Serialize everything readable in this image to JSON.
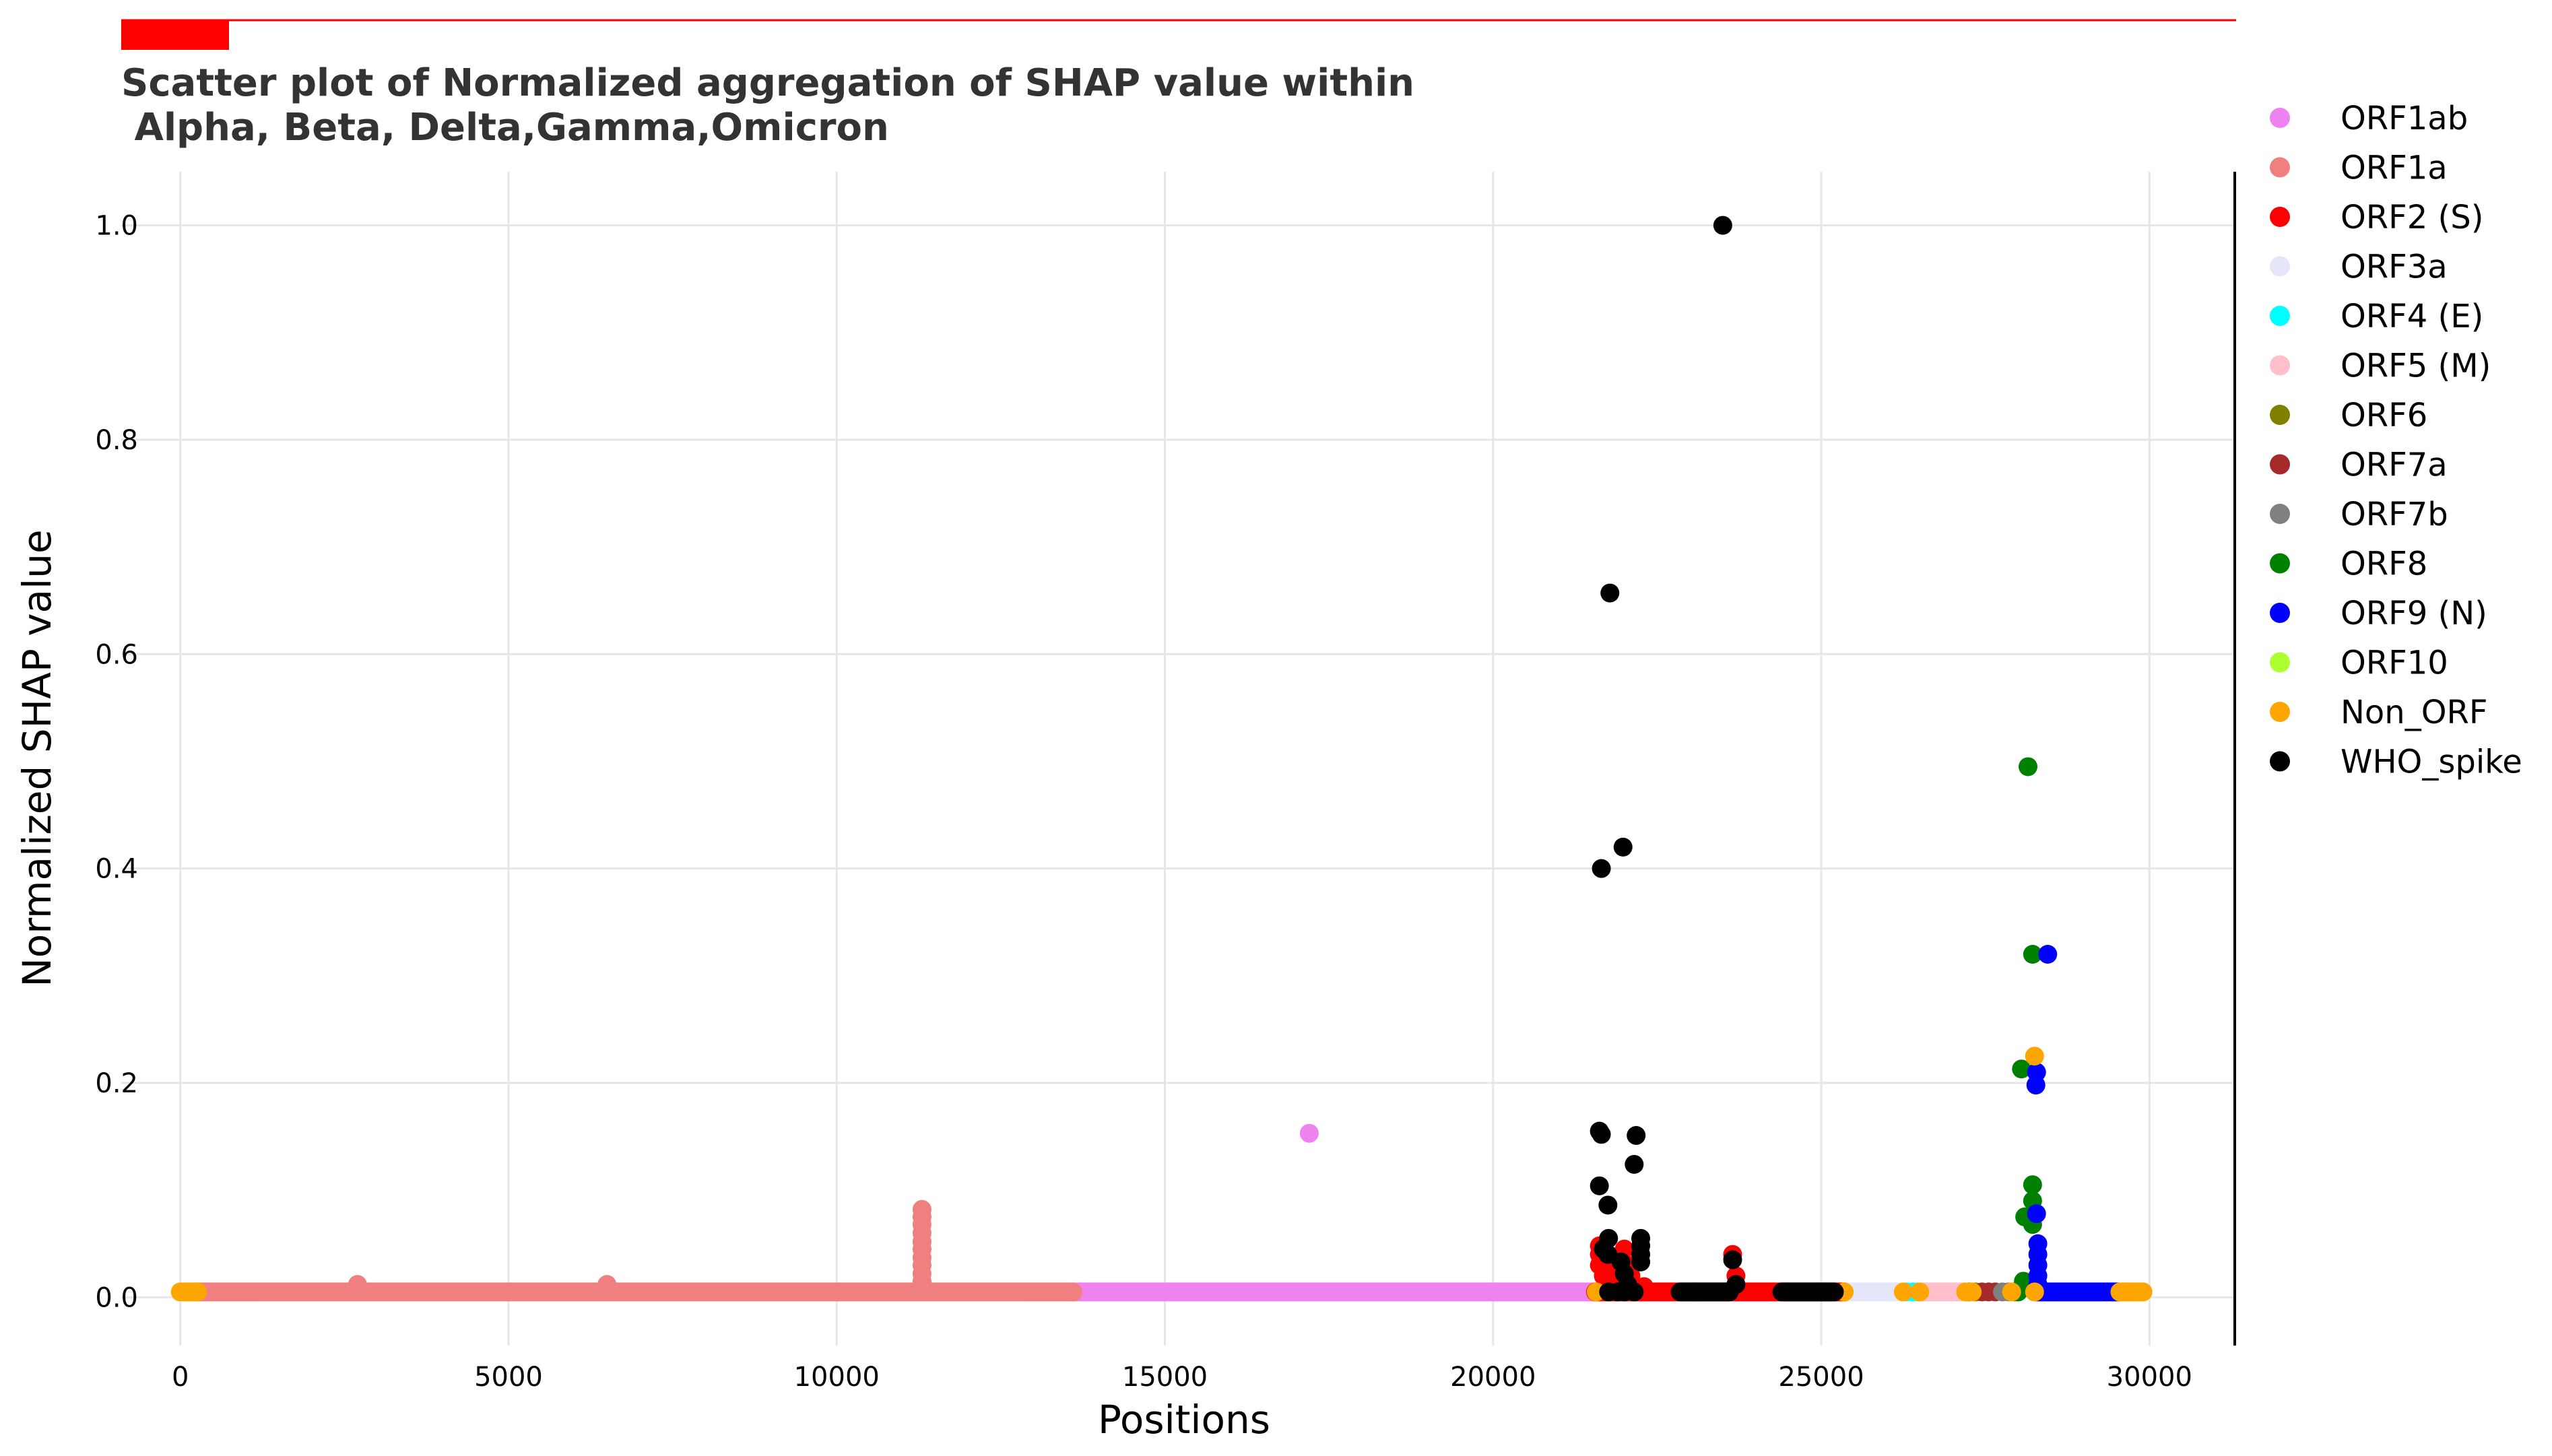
{
  "chart_data": {
    "type": "scatter",
    "title_line1": "Scatter plot of Normalized aggregation of SHAP value within",
    "title_line2": " Alpha, Beta, Delta,Gamma,Omicron",
    "xlabel": "Positions",
    "ylabel": "Normalized SHAP value",
    "xlim": [
      -900,
      31300
    ],
    "ylim": [
      -0.045,
      1.05
    ],
    "x_ticks": [
      0,
      5000,
      10000,
      15000,
      20000,
      25000,
      30000
    ],
    "x_tick_labels": [
      "0",
      "5000",
      "10000",
      "15000",
      "20000",
      "25000",
      "30000"
    ],
    "y_ticks": [
      0.0,
      0.2,
      0.4,
      0.6,
      0.8,
      1.0
    ],
    "y_tick_labels": [
      "0.0",
      "0.2",
      "0.4",
      "0.6",
      "0.8",
      "1.0"
    ],
    "grid": true,
    "legend_position": "right",
    "series": [
      {
        "name": "ORF1ab",
        "color": "#ee82ee",
        "segments": [
          [
            13600,
            21550,
            0.005
          ]
        ],
        "points": [
          [
            17200,
            0.153
          ]
        ]
      },
      {
        "name": "ORF1a",
        "color": "#f08080",
        "segments": [
          [
            250,
            13600,
            0.005
          ]
        ],
        "points": [
          [
            2700,
            0.012
          ],
          [
            6500,
            0.012
          ],
          [
            11300,
            0.082
          ],
          [
            11300,
            0.075
          ],
          [
            11300,
            0.068
          ],
          [
            11300,
            0.06
          ],
          [
            11300,
            0.052
          ],
          [
            11300,
            0.045
          ],
          [
            11300,
            0.037
          ],
          [
            11300,
            0.03
          ],
          [
            11300,
            0.022
          ],
          [
            11300,
            0.015
          ]
        ]
      },
      {
        "name": "ORF2 (S)",
        "color": "#ff0000",
        "segments": [
          [
            21560,
            25380,
            0.005
          ]
        ],
        "points": [
          [
            21620,
            0.048
          ],
          [
            21620,
            0.04
          ],
          [
            21620,
            0.03
          ],
          [
            21680,
            0.02
          ],
          [
            21750,
            0.035
          ],
          [
            21800,
            0.025
          ],
          [
            21850,
            0.015
          ],
          [
            21950,
            0.04
          ],
          [
            22000,
            0.045
          ],
          [
            22050,
            0.03
          ],
          [
            22100,
            0.02
          ],
          [
            22150,
            0.01
          ],
          [
            22250,
            0.005
          ],
          [
            22300,
            0.01
          ],
          [
            23650,
            0.04
          ],
          [
            23700,
            0.02
          ]
        ]
      },
      {
        "name": "ORF3a",
        "color": "#e6e6fa",
        "segments": [
          [
            25390,
            26220,
            0.005
          ]
        ],
        "points": []
      },
      {
        "name": "ORF4 (E)",
        "color": "#00ffff",
        "segments": [],
        "points": [
          [
            26300,
            0.005
          ],
          [
            26400,
            0.005
          ],
          [
            26470,
            0.005
          ]
        ]
      },
      {
        "name": "ORF5 (M)",
        "color": "#ffc0cb",
        "segments": [
          [
            26520,
            27190,
            0.005
          ]
        ],
        "points": []
      },
      {
        "name": "ORF6",
        "color": "#808000",
        "segments": [],
        "points": [
          [
            27250,
            0.005
          ],
          [
            27350,
            0.005
          ]
        ]
      },
      {
        "name": "ORF7a",
        "color": "#a52a2a",
        "segments": [],
        "points": [
          [
            27450,
            0.005
          ],
          [
            27550,
            0.005
          ],
          [
            27650,
            0.005
          ]
        ]
      },
      {
        "name": "ORF7b",
        "color": "#808080",
        "segments": [],
        "points": [
          [
            27760,
            0.005
          ],
          [
            27850,
            0.005
          ]
        ]
      },
      {
        "name": "ORF8",
        "color": "#008000",
        "segments": [],
        "points": [
          [
            28150,
            0.495
          ],
          [
            28220,
            0.32
          ],
          [
            28050,
            0.213
          ],
          [
            28220,
            0.105
          ],
          [
            28220,
            0.09
          ],
          [
            28100,
            0.075
          ],
          [
            28220,
            0.068
          ],
          [
            28080,
            0.015
          ],
          [
            27950,
            0.005
          ],
          [
            28000,
            0.005
          ]
        ]
      },
      {
        "name": "ORF9 (N)",
        "color": "#0000ff",
        "segments": [
          [
            28280,
            29530,
            0.005
          ]
        ],
        "points": [
          [
            28450,
            0.32
          ],
          [
            28280,
            0.21
          ],
          [
            28270,
            0.198
          ],
          [
            28280,
            0.078
          ],
          [
            28300,
            0.05
          ],
          [
            28300,
            0.04
          ],
          [
            28300,
            0.03
          ],
          [
            28300,
            0.02
          ],
          [
            28300,
            0.012
          ]
        ]
      },
      {
        "name": "ORF10",
        "color": "#adff2f",
        "segments": [],
        "points": [
          [
            29600,
            0.005
          ],
          [
            29650,
            0.005
          ]
        ]
      },
      {
        "name": "Non_ORF",
        "color": "#ffa500",
        "segments": [
          [
            0,
            260,
            0.005
          ],
          [
            29560,
            29900,
            0.005
          ]
        ],
        "points": [
          [
            21570,
            0.005
          ],
          [
            25350,
            0.005
          ],
          [
            26250,
            0.005
          ],
          [
            26500,
            0.005
          ],
          [
            27200,
            0.005
          ],
          [
            27300,
            0.005
          ],
          [
            27900,
            0.005
          ],
          [
            28250,
            0.225
          ],
          [
            28250,
            0.005
          ],
          [
            29550,
            0.005
          ],
          [
            29750,
            0.005
          ],
          [
            29900,
            0.005
          ]
        ]
      },
      {
        "name": "WHO_spike",
        "color": "#000000",
        "segments": [
          [
            22850,
            23600,
            0.005
          ],
          [
            24400,
            25200,
            0.005
          ]
        ],
        "points": [
          [
            23500,
            1.0
          ],
          [
            21780,
            0.657
          ],
          [
            21980,
            0.42
          ],
          [
            21650,
            0.4
          ],
          [
            21620,
            0.155
          ],
          [
            21650,
            0.152
          ],
          [
            22180,
            0.151
          ],
          [
            22150,
            0.124
          ],
          [
            21620,
            0.104
          ],
          [
            21750,
            0.086
          ],
          [
            21760,
            0.055
          ],
          [
            21680,
            0.045
          ],
          [
            21750,
            0.04
          ],
          [
            22250,
            0.055
          ],
          [
            22250,
            0.048
          ],
          [
            22250,
            0.04
          ],
          [
            22250,
            0.033
          ],
          [
            21950,
            0.033
          ],
          [
            22000,
            0.022
          ],
          [
            22050,
            0.012
          ],
          [
            21760,
            0.005
          ],
          [
            21900,
            0.005
          ],
          [
            22000,
            0.005
          ],
          [
            22150,
            0.005
          ],
          [
            23650,
            0.035
          ],
          [
            23700,
            0.012
          ],
          [
            23100,
            0.005
          ],
          [
            24500,
            0.005
          ],
          [
            25000,
            0.005
          ]
        ]
      }
    ]
  }
}
